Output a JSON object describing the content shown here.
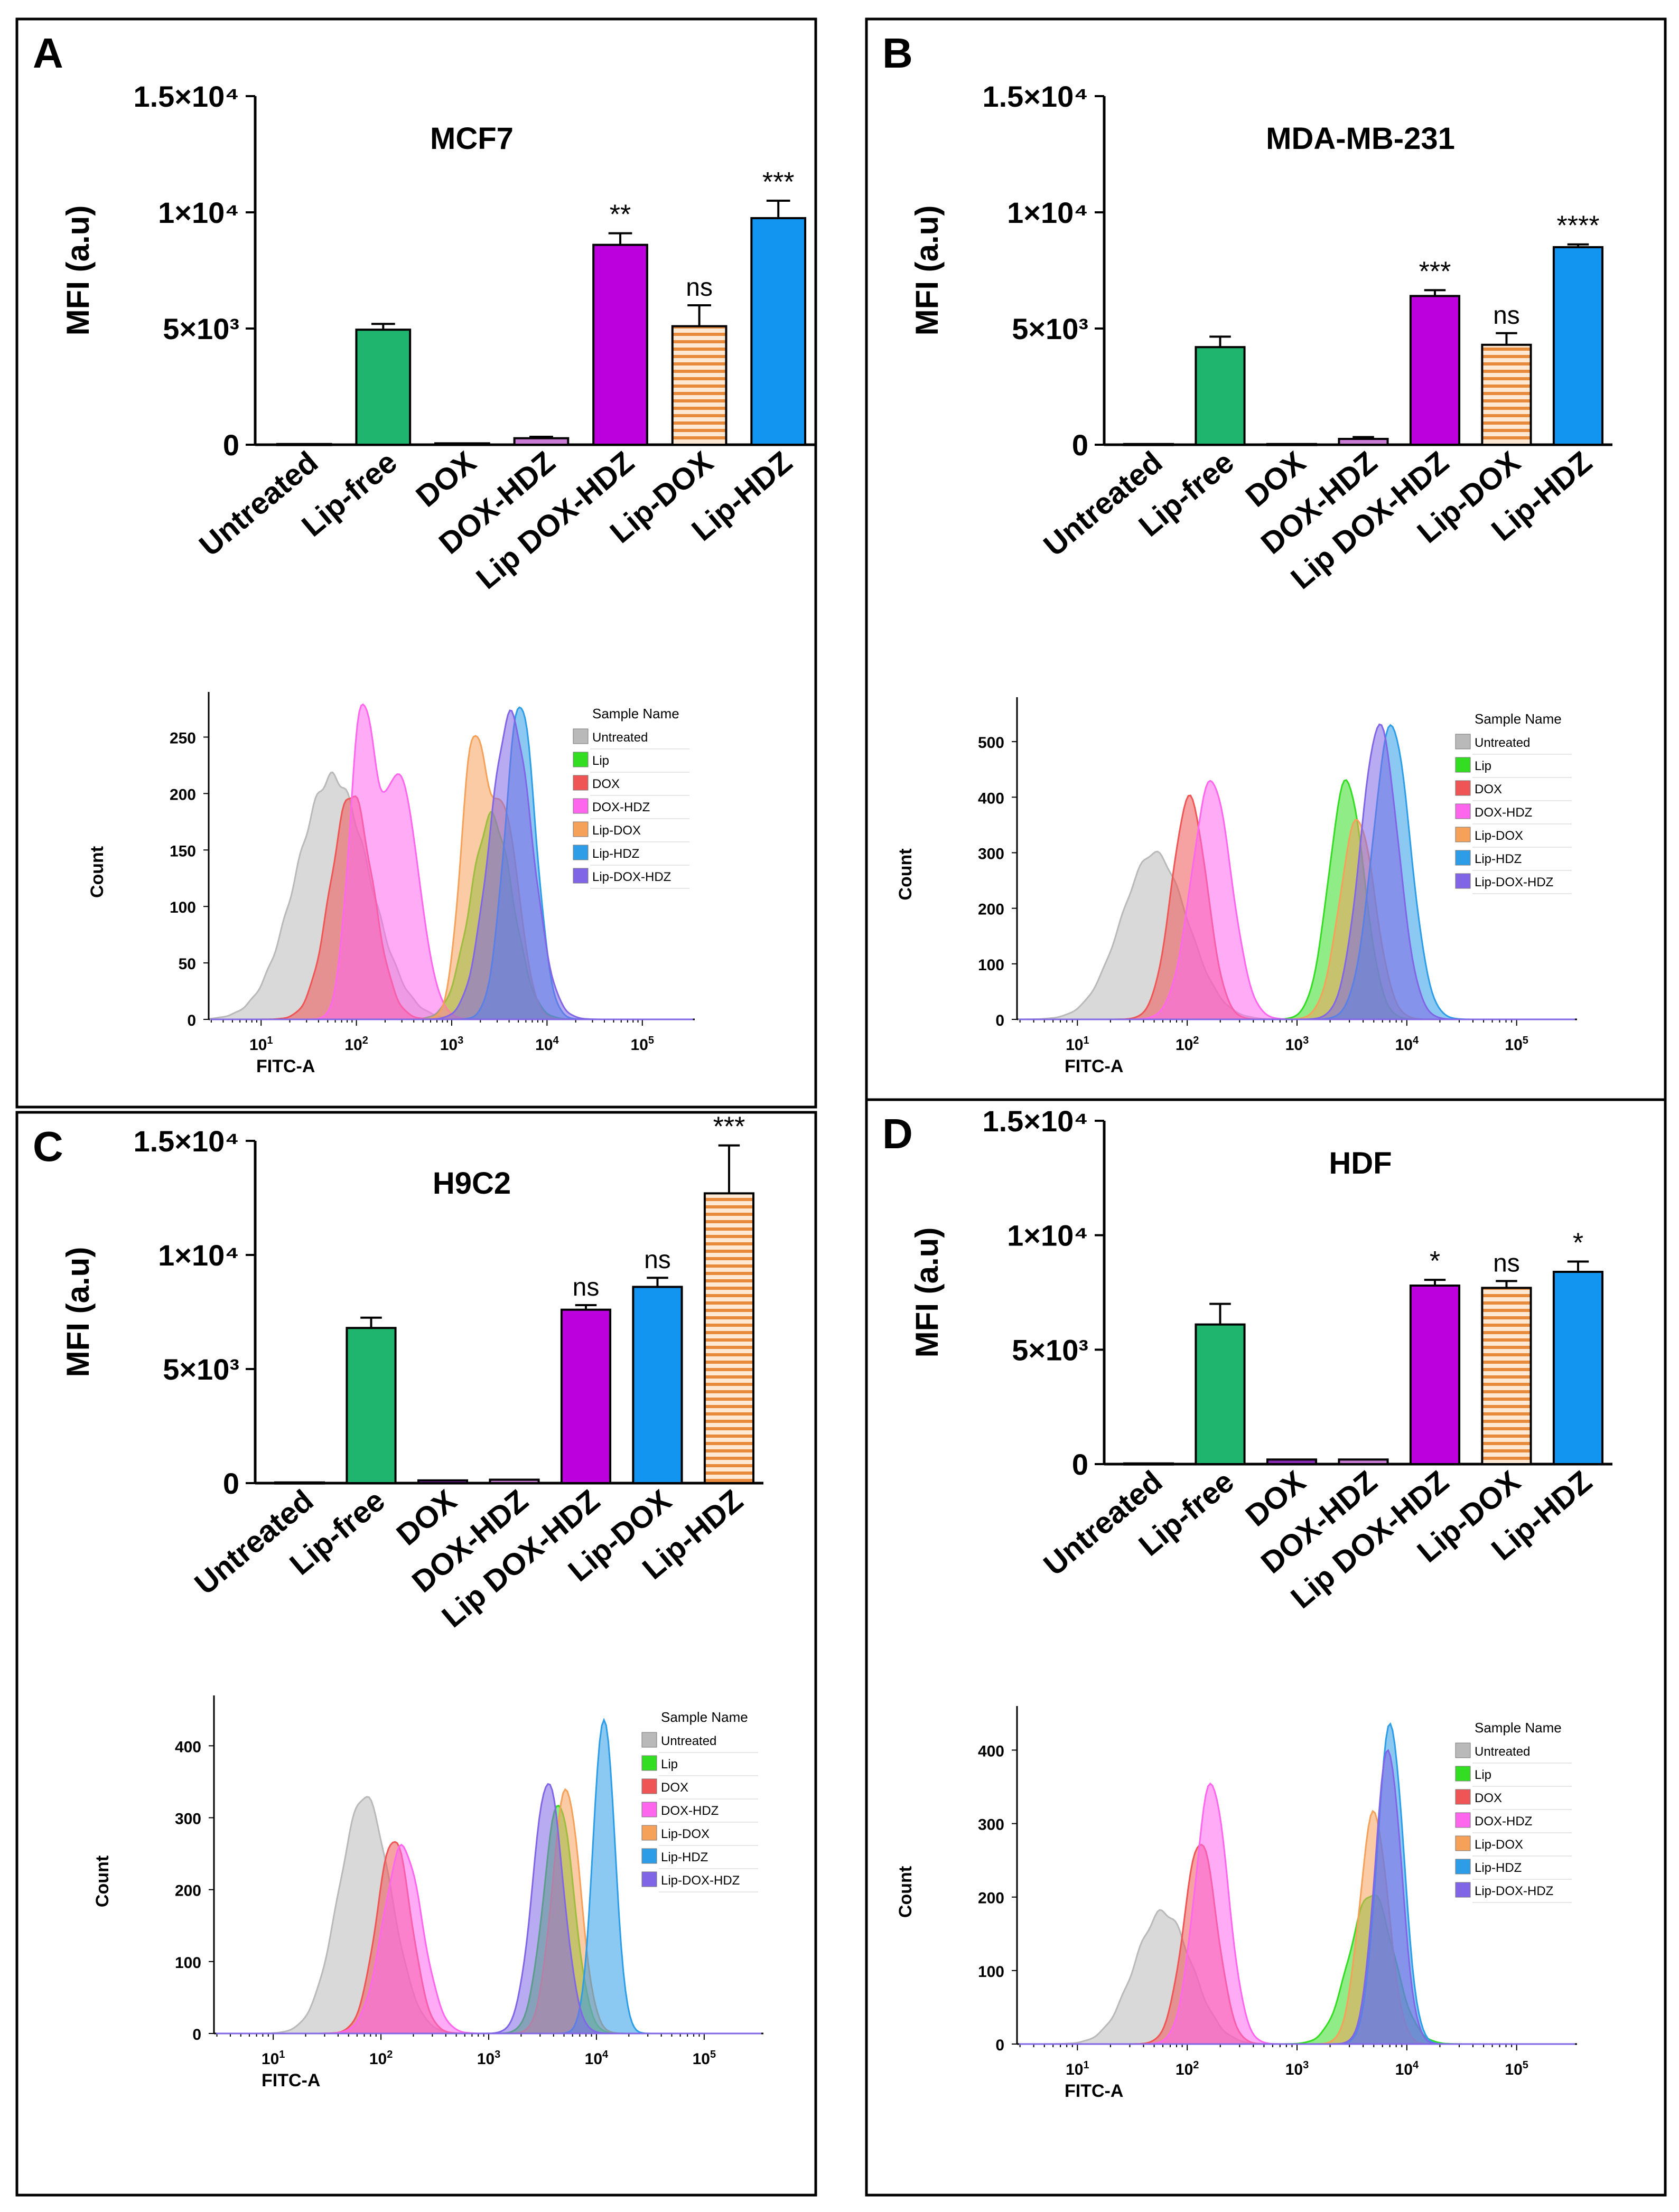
{
  "chart_data": [
    {
      "panel": "A",
      "type": "bar",
      "title": "MCF7",
      "ylabel": "MFI (a.u)",
      "ylim": [
        0,
        15000
      ],
      "yticks": [
        0,
        5000,
        10000,
        15000
      ],
      "ytick_labels": [
        "0",
        "5×10³",
        "1×10⁴",
        "1.5×10⁴"
      ],
      "categories": [
        "Untreated",
        "Lip-free",
        "DOX",
        "DOX-HDZ",
        "Lip DOX-HDZ",
        "Lip-DOX",
        "Lip-HDZ"
      ],
      "values": [
        30,
        4950,
        60,
        280,
        8600,
        5100,
        9750
      ],
      "errors": [
        0,
        250,
        0,
        60,
        500,
        900,
        750
      ],
      "fills": [
        "#9e9e9e",
        "#1fb56f",
        "#8a2bb5",
        "#c97bd6",
        "#bb00dd",
        "stripe",
        "#1295f1"
      ],
      "annotations": [
        "",
        "",
        "",
        "",
        "**",
        "ns",
        "***"
      ],
      "histogram": {
        "xlabel": "FITC-A",
        "ylabel": "Count",
        "ymax": 290,
        "yticks": [
          0,
          50,
          100,
          150,
          200,
          250
        ],
        "legend_title": "Sample Name",
        "series": [
          {
            "name": "Untreated",
            "color": "#b9b9b9",
            "peaks": [
              [
                1.75,
                215,
                0.38
              ]
            ]
          },
          {
            "name": "Lip",
            "color": "#33dd22",
            "peaks": [
              [
                3.42,
                180,
                0.22
              ]
            ]
          },
          {
            "name": "DOX",
            "color": "#f05555",
            "peaks": [
              [
                1.95,
                200,
                0.22
              ]
            ]
          },
          {
            "name": "DOX-HDZ",
            "color": "#ff66ee",
            "peaks": [
              [
                2.05,
                250,
                0.13
              ],
              [
                2.45,
                215,
                0.2
              ]
            ]
          },
          {
            "name": "Lip-DOX",
            "color": "#f5a15a",
            "peaks": [
              [
                3.22,
                230,
                0.13
              ],
              [
                3.55,
                180,
                0.16
              ]
            ]
          },
          {
            "name": "Lip-HDZ",
            "color": "#2d9de8",
            "peaks": [
              [
                3.72,
                280,
                0.16
              ]
            ]
          },
          {
            "name": "Lip-DOX-HDZ",
            "color": "#8066e6",
            "peaks": [
              [
                3.62,
                270,
                0.22
              ]
            ]
          }
        ]
      }
    },
    {
      "panel": "B",
      "type": "bar",
      "title": "MDA-MB-231",
      "ylabel": "MFI (a.u)",
      "ylim": [
        0,
        15000
      ],
      "yticks": [
        0,
        5000,
        10000,
        15000
      ],
      "ytick_labels": [
        "0",
        "5×10³",
        "1×10⁴",
        "1.5×10⁴"
      ],
      "categories": [
        "Untreated",
        "Lip-free",
        "DOX",
        "DOX-HDZ",
        "Lip DOX-HDZ",
        "Lip-DOX",
        "Lip-HDZ"
      ],
      "values": [
        30,
        4200,
        30,
        250,
        6400,
        4300,
        8500
      ],
      "errors": [
        0,
        450,
        0,
        80,
        250,
        500,
        120
      ],
      "fills": [
        "#9e9e9e",
        "#1fb56f",
        "#8a2bb5",
        "#c97bd6",
        "#bb00dd",
        "stripe",
        "#1295f1"
      ],
      "annotations": [
        "",
        "",
        "",
        "",
        "***",
        "ns",
        "****"
      ],
      "histogram": {
        "xlabel": "FITC-A",
        "ylabel": "Count",
        "ymax": 580,
        "yticks": [
          0,
          100,
          200,
          300,
          400,
          500
        ],
        "legend_title": "Sample Name",
        "series": [
          {
            "name": "Untreated",
            "color": "#b9b9b9",
            "peaks": [
              [
                1.7,
                300,
                0.3
              ]
            ]
          },
          {
            "name": "Lip",
            "color": "#33dd22",
            "peaks": [
              [
                3.45,
                430,
                0.16
              ]
            ]
          },
          {
            "name": "DOX",
            "color": "#f05555",
            "peaks": [
              [
                2.02,
                400,
                0.16
              ]
            ]
          },
          {
            "name": "DOX-HDZ",
            "color": "#ff66ee",
            "peaks": [
              [
                2.22,
                430,
                0.18
              ]
            ]
          },
          {
            "name": "Lip-DOX",
            "color": "#f5a15a",
            "peaks": [
              [
                3.55,
                360,
                0.16
              ]
            ]
          },
          {
            "name": "Lip-HDZ",
            "color": "#2d9de8",
            "peaks": [
              [
                3.86,
                530,
                0.17
              ]
            ]
          },
          {
            "name": "Lip-DOX-HDZ",
            "color": "#8066e6",
            "peaks": [
              [
                3.75,
                530,
                0.17
              ]
            ]
          }
        ]
      }
    },
    {
      "panel": "C",
      "type": "bar",
      "title": "H9C2",
      "ylabel": "MFI (a.u)",
      "ylim": [
        0,
        15000
      ],
      "yticks": [
        0,
        5000,
        10000,
        15000
      ],
      "ytick_labels": [
        "0",
        "5×10³",
        "1×10⁴",
        "1.5×10⁴"
      ],
      "categories": [
        "Untreated",
        "Lip-free",
        "DOX",
        "DOX-HDZ",
        "Lip DOX-HDZ",
        "Lip-DOX",
        "Lip-HDZ"
      ],
      "values": [
        30,
        6800,
        120,
        150,
        7600,
        8600,
        12700
      ],
      "errors": [
        0,
        450,
        0,
        0,
        200,
        400,
        2100
      ],
      "fills": [
        "#9e9e9e",
        "#1fb56f",
        "#8a2bb5",
        "#c97bd6",
        "#bb00dd",
        "#1295f1",
        "stripe"
      ],
      "annotations": [
        "",
        "",
        "",
        "",
        "ns",
        "ns",
        "***"
      ],
      "histogram": {
        "xlabel": "FITC-A",
        "ylabel": "Count",
        "ymax": 470,
        "yticks": [
          0,
          100,
          200,
          300,
          400
        ],
        "legend_title": "Sample Name",
        "series": [
          {
            "name": "Untreated",
            "color": "#b9b9b9",
            "peaks": [
              [
                1.85,
                330,
                0.24
              ]
            ]
          },
          {
            "name": "Lip",
            "color": "#33dd22",
            "peaks": [
              [
                3.65,
                320,
                0.14
              ]
            ]
          },
          {
            "name": "DOX",
            "color": "#f05555",
            "peaks": [
              [
                2.12,
                270,
                0.16
              ]
            ]
          },
          {
            "name": "DOX-HDZ",
            "color": "#ff66ee",
            "peaks": [
              [
                2.2,
                260,
                0.18
              ]
            ]
          },
          {
            "name": "Lip-DOX",
            "color": "#f5a15a",
            "peaks": [
              [
                3.72,
                340,
                0.13
              ]
            ]
          },
          {
            "name": "Lip-HDZ",
            "color": "#2d9de8",
            "peaks": [
              [
                4.07,
                440,
                0.1
              ]
            ]
          },
          {
            "name": "Lip-DOX-HDZ",
            "color": "#8066e6",
            "peaks": [
              [
                3.55,
                350,
                0.14
              ]
            ]
          }
        ]
      }
    },
    {
      "panel": "D",
      "type": "bar",
      "title": "HDF",
      "ylabel": "MFI (a.u)",
      "ylim": [
        0,
        15000
      ],
      "yticks": [
        0,
        5000,
        10000,
        15000
      ],
      "ytick_labels": [
        "0",
        "5×10³",
        "1×10⁴",
        "1.5×10⁴"
      ],
      "categories": [
        "Untreated",
        "Lip-free",
        "DOX",
        "DOX-HDZ",
        "Lip DOX-HDZ",
        "Lip-DOX",
        "Lip-HDZ"
      ],
      "values": [
        30,
        6100,
        200,
        200,
        7800,
        7700,
        8400
      ],
      "errors": [
        0,
        900,
        0,
        0,
        250,
        300,
        450
      ],
      "fills": [
        "#9e9e9e",
        "#1fb56f",
        "#8a2bb5",
        "#c97bd6",
        "#bb00dd",
        "stripe",
        "#1295f1"
      ],
      "annotations": [
        "",
        "",
        "",
        "",
        "*",
        "ns",
        "*"
      ],
      "histogram": {
        "xlabel": "FITC-A",
        "ylabel": "Count",
        "ymax": 460,
        "yticks": [
          0,
          100,
          200,
          300,
          400
        ],
        "legend_title": "Sample Name",
        "series": [
          {
            "name": "Untreated",
            "color": "#b9b9b9",
            "peaks": [
              [
                1.78,
                180,
                0.26
              ]
            ]
          },
          {
            "name": "Lip",
            "color": "#33dd22",
            "peaks": [
              [
                3.68,
                205,
                0.2
              ]
            ]
          },
          {
            "name": "DOX",
            "color": "#f05555",
            "peaks": [
              [
                2.12,
                275,
                0.15
              ]
            ]
          },
          {
            "name": "DOX-HDZ",
            "color": "#ff66ee",
            "peaks": [
              [
                2.22,
                355,
                0.15
              ]
            ]
          },
          {
            "name": "Lip-DOX",
            "color": "#f5a15a",
            "peaks": [
              [
                3.7,
                315,
                0.13
              ]
            ]
          },
          {
            "name": "Lip-HDZ",
            "color": "#2d9de8",
            "peaks": [
              [
                3.85,
                435,
                0.12
              ]
            ]
          },
          {
            "name": "Lip-DOX-HDZ",
            "color": "#8066e6",
            "peaks": [
              [
                3.83,
                400,
                0.12
              ]
            ]
          }
        ]
      }
    }
  ]
}
